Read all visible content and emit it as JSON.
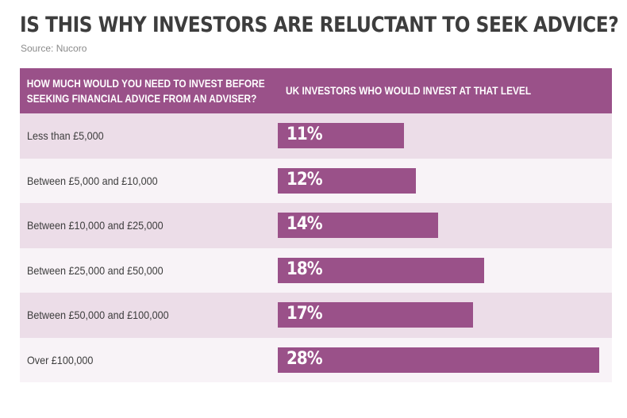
{
  "title": "IS THIS WHY INVESTORS ARE RELUCTANT TO SEEK ADVICE?",
  "source": "Source: Nucoro",
  "colors": {
    "bar": "#9a5189",
    "header_bg": "#9a5189",
    "row_odd": "#ecdde8",
    "row_even": "#f8f3f7",
    "title": "#3d3d3d"
  },
  "table": {
    "header": {
      "col1": "HOW MUCH WOULD YOU NEED TO INVEST BEFORE SEEKING FINANCIAL ADVICE FROM AN ADVISER?",
      "col1_line1": "HOW MUCH WOULD YOU NEED TO INVEST BEFORE",
      "col1_line2": "SEEKING FINANCIAL ADVICE FROM AN ADVISER?",
      "col2": "UK INVESTORS WHO WOULD INVEST AT THAT LEVEL"
    },
    "rows": [
      {
        "label": "Less than £5,000",
        "value": 11,
        "display": "11%"
      },
      {
        "label": "Between £5,000 and £10,000",
        "value": 12,
        "display": "12%"
      },
      {
        "label": "Between £10,000 and £25,000",
        "value": 14,
        "display": "14%"
      },
      {
        "label": "Between £25,000 and £50,000",
        "value": 18,
        "display": "18%"
      },
      {
        "label": "Between £50,000 and £100,000",
        "value": 17,
        "display": "17%"
      },
      {
        "label": "Over £100,000",
        "value": 28,
        "display": "28%"
      }
    ]
  },
  "chart_data": {
    "type": "bar",
    "orientation": "horizontal",
    "title": "IS THIS WHY INVESTORS ARE RELUCTANT TO SEEK ADVICE?",
    "subtitle": "Source: Nucoro",
    "categories": [
      "Less than £5,000",
      "Between £5,000 and £10,000",
      "Between £10,000 and £25,000",
      "Between £25,000 and £50,000",
      "Between £50,000 and £100,000",
      "Over £100,000"
    ],
    "values": [
      11,
      12,
      14,
      18,
      17,
      28
    ],
    "value_labels": [
      "11%",
      "12%",
      "14%",
      "18%",
      "17%",
      "28%"
    ],
    "xlabel": "UK INVESTORS WHO WOULD INVEST AT THAT LEVEL",
    "ylabel": "HOW MUCH WOULD YOU NEED TO INVEST BEFORE SEEKING FINANCIAL ADVICE FROM AN ADVISER?",
    "unit": "%",
    "grid": false,
    "legend": "none"
  }
}
